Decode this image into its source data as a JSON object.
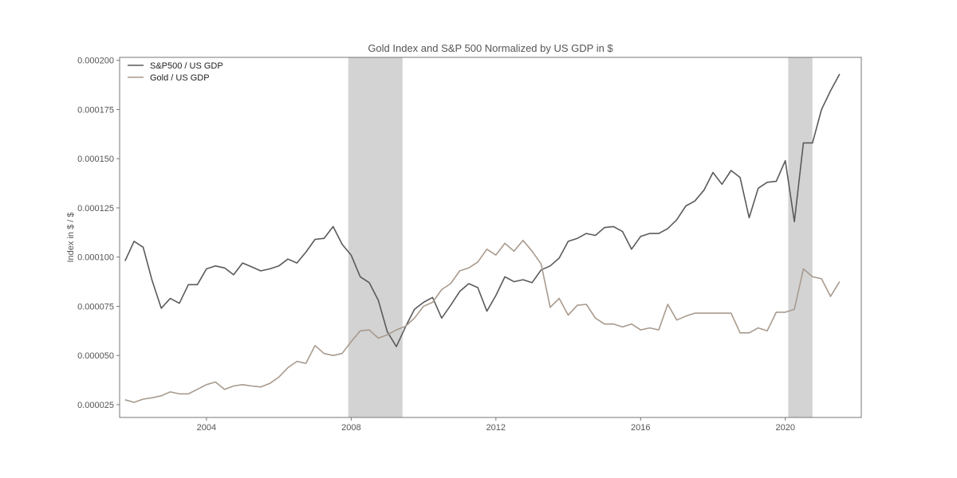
{
  "chart_data": {
    "type": "line",
    "title": "Gold Index and S&P 500 Normalized by US GDP in $",
    "xlabel": "",
    "ylabel": "Index in $ / $",
    "xlim": [
      2001.6,
      2022.1
    ],
    "ylim": [
      1.85e-05,
      0.0002015
    ],
    "x_ticks": [
      2004,
      2008,
      2012,
      2016,
      2020
    ],
    "y_ticks": [
      2.5e-05,
      5e-05,
      7.5e-05,
      0.0001,
      0.000125,
      0.00015,
      0.000175,
      0.0002
    ],
    "y_tick_labels": [
      "0.000025",
      "0.000050",
      "0.000075",
      "0.000100",
      "0.000125",
      "0.000150",
      "0.000175",
      "0.000200"
    ],
    "grid": false,
    "legend_position": "top-left",
    "recession_bands": [
      {
        "start": 2007.92,
        "end": 2009.42
      },
      {
        "start": 2020.08,
        "end": 2020.75
      }
    ],
    "colors": {
      "sp500": "#5a5a5a",
      "gold": "#a89a8e",
      "band": "#d3d3d3"
    },
    "series": [
      {
        "name": "S&P500 / US GDP",
        "color_key": "sp500",
        "x": [
          2001.75,
          2002.0,
          2002.25,
          2002.5,
          2002.75,
          2003.0,
          2003.25,
          2003.5,
          2003.75,
          2004.0,
          2004.25,
          2004.5,
          2004.75,
          2005.0,
          2005.25,
          2005.5,
          2005.75,
          2006.0,
          2006.25,
          2006.5,
          2006.75,
          2007.0,
          2007.25,
          2007.5,
          2007.75,
          2008.0,
          2008.25,
          2008.5,
          2008.75,
          2009.0,
          2009.25,
          2009.5,
          2009.75,
          2010.0,
          2010.25,
          2010.5,
          2010.75,
          2011.0,
          2011.25,
          2011.5,
          2011.75,
          2012.0,
          2012.25,
          2012.5,
          2012.75,
          2013.0,
          2013.25,
          2013.5,
          2013.75,
          2014.0,
          2014.25,
          2014.5,
          2014.75,
          2015.0,
          2015.25,
          2015.5,
          2015.75,
          2016.0,
          2016.25,
          2016.5,
          2016.75,
          2017.0,
          2017.25,
          2017.5,
          2017.75,
          2018.0,
          2018.25,
          2018.5,
          2018.75,
          2019.0,
          2019.25,
          2019.5,
          2019.75,
          2020.0,
          2020.25,
          2020.5,
          2020.75,
          2021.0,
          2021.25,
          2021.5
        ],
        "y": [
          9.8e-05,
          0.000108,
          0.000105,
          8.8e-05,
          7.4e-05,
          7.9e-05,
          7.65e-05,
          8.6e-05,
          8.6e-05,
          9.4e-05,
          9.55e-05,
          9.45e-05,
          9.1e-05,
          9.7e-05,
          9.5e-05,
          9.3e-05,
          9.4e-05,
          9.55e-05,
          9.9e-05,
          9.7e-05,
          0.0001025,
          0.000109,
          0.0001095,
          0.0001155,
          0.0001065,
          0.000101,
          9e-05,
          8.7e-05,
          7.8e-05,
          6.2e-05,
          5.45e-05,
          6.45e-05,
          7.35e-05,
          7.7e-05,
          7.95e-05,
          6.9e-05,
          7.55e-05,
          8.25e-05,
          8.65e-05,
          8.45e-05,
          7.25e-05,
          8.05e-05,
          9e-05,
          8.75e-05,
          8.85e-05,
          8.7e-05,
          9.35e-05,
          9.55e-05,
          9.95e-05,
          0.000108,
          0.0001095,
          0.000112,
          0.000111,
          0.000115,
          0.0001155,
          0.000113,
          0.000104,
          0.0001105,
          0.000112,
          0.000112,
          0.0001145,
          0.000119,
          0.000126,
          0.0001285,
          0.000134,
          0.000143,
          0.000137,
          0.000144,
          0.0001405,
          0.00012,
          0.000135,
          0.000138,
          0.0001385,
          0.000149,
          0.000118,
          0.000158,
          0.000158,
          0.000175,
          0.0001845,
          0.000193
        ]
      },
      {
        "name": "Gold / US GDP",
        "color_key": "gold",
        "x": [
          2001.75,
          2002.0,
          2002.25,
          2002.5,
          2002.75,
          2003.0,
          2003.25,
          2003.5,
          2003.75,
          2004.0,
          2004.25,
          2004.5,
          2004.75,
          2005.0,
          2005.25,
          2005.5,
          2005.75,
          2006.0,
          2006.25,
          2006.5,
          2006.75,
          2007.0,
          2007.25,
          2007.5,
          2007.75,
          2008.0,
          2008.25,
          2008.5,
          2008.75,
          2009.0,
          2009.25,
          2009.5,
          2009.75,
          2010.0,
          2010.25,
          2010.5,
          2010.75,
          2011.0,
          2011.25,
          2011.5,
          2011.75,
          2012.0,
          2012.25,
          2012.5,
          2012.75,
          2013.0,
          2013.25,
          2013.5,
          2013.75,
          2014.0,
          2014.25,
          2014.5,
          2014.75,
          2015.0,
          2015.25,
          2015.5,
          2015.75,
          2016.0,
          2016.25,
          2016.5,
          2016.75,
          2017.0,
          2017.25,
          2017.5,
          2017.75,
          2018.0,
          2018.25,
          2018.5,
          2018.75,
          2019.0,
          2019.25,
          2019.5,
          2019.75,
          2020.0,
          2020.25,
          2020.5,
          2020.75,
          2021.0,
          2021.25,
          2021.5
        ],
        "y": [
          2.75e-05,
          2.62e-05,
          2.78e-05,
          2.85e-05,
          2.95e-05,
          3.15e-05,
          3.05e-05,
          3.05e-05,
          3.28e-05,
          3.52e-05,
          3.65e-05,
          3.28e-05,
          3.45e-05,
          3.52e-05,
          3.45e-05,
          3.4e-05,
          3.58e-05,
          3.9e-05,
          4.38e-05,
          4.7e-05,
          4.6e-05,
          5.5e-05,
          5.1e-05,
          5e-05,
          5.1e-05,
          5.7e-05,
          6.25e-05,
          6.3e-05,
          5.88e-05,
          6.05e-05,
          6.3e-05,
          6.48e-05,
          6.9e-05,
          7.5e-05,
          7.7e-05,
          8.35e-05,
          8.65e-05,
          9.3e-05,
          9.45e-05,
          9.75e-05,
          0.000104,
          0.000101,
          0.000107,
          0.000103,
          0.0001085,
          0.000103,
          9.65e-05,
          7.45e-05,
          7.9e-05,
          7.05e-05,
          7.55e-05,
          7.6e-05,
          6.9e-05,
          6.6e-05,
          6.6e-05,
          6.45e-05,
          6.6e-05,
          6.3e-05,
          6.4e-05,
          6.3e-05,
          7.6e-05,
          6.8e-05,
          7e-05,
          7.15e-05,
          7.15e-05,
          7.15e-05,
          7.15e-05,
          7.15e-05,
          6.15e-05,
          6.15e-05,
          6.4e-05,
          6.25e-05,
          7.2e-05,
          7.2e-05,
          7.35e-05,
          9.4e-05,
          9e-05,
          8.9e-05,
          8e-05,
          8.75e-05
        ]
      }
    ]
  }
}
